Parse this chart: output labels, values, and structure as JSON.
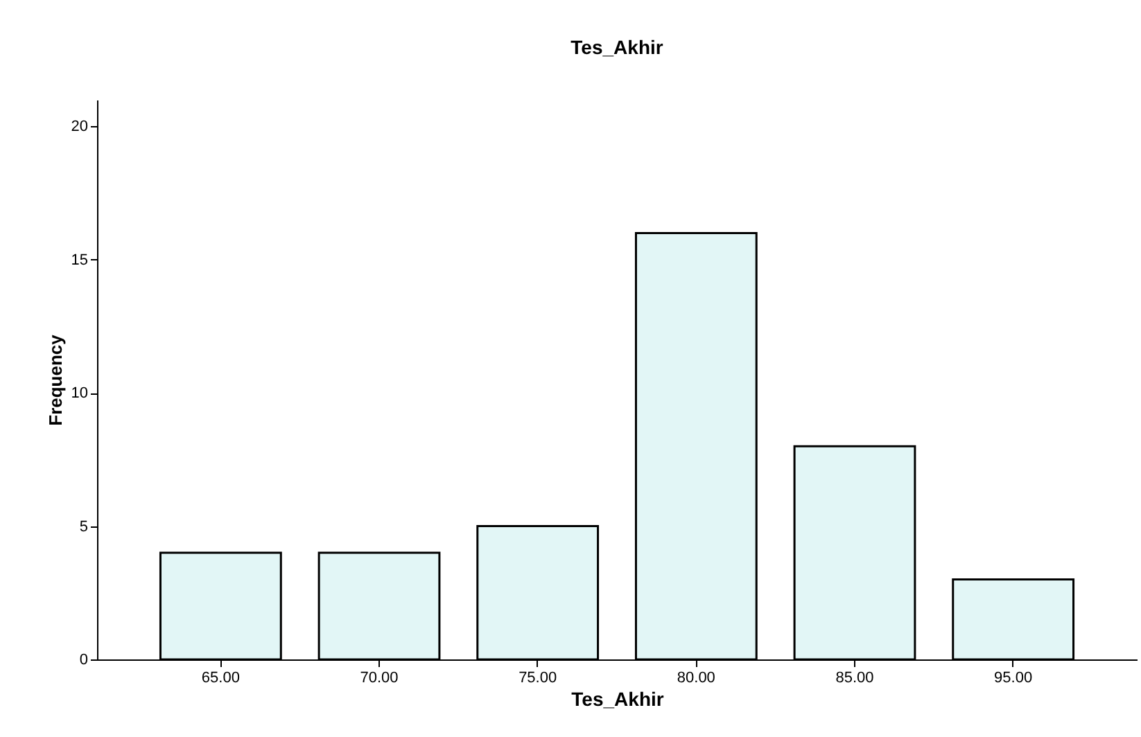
{
  "chart_data": {
    "type": "bar",
    "title": "Tes_Akhir",
    "xlabel": "Tes_Akhir",
    "ylabel": "Frequency",
    "categories": [
      "65.00",
      "70.00",
      "75.00",
      "80.00",
      "85.00",
      "95.00"
    ],
    "values": [
      4,
      4,
      5,
      16,
      8,
      3
    ],
    "color": "#e2f6f6",
    "ylim": [
      0,
      21
    ],
    "yticks": [
      0,
      5,
      10,
      15,
      20
    ],
    "grid": false
  }
}
